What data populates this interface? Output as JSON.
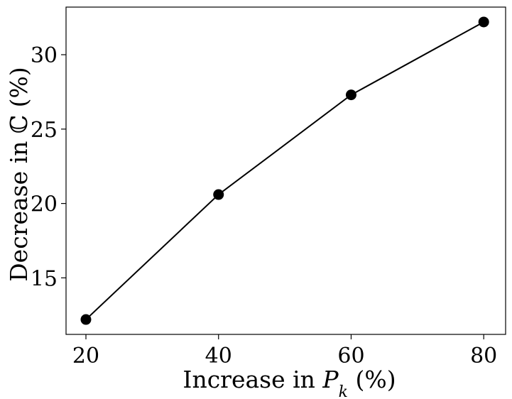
{
  "chart_data": {
    "type": "line",
    "title": "",
    "x": [
      20,
      40,
      60,
      80
    ],
    "series": [
      {
        "values": [
          12.2,
          20.6,
          27.3,
          32.2
        ]
      }
    ],
    "xlabel_prefix": "Increase in ",
    "xlabel_symbol": "P",
    "xlabel_subscript": "k",
    "xlabel_suffix": " (%)",
    "ylabel": "Decrease in ℂ (%)",
    "xlim": [
      17,
      83.3
    ],
    "ylim": [
      11.2,
      33.2
    ],
    "xticks": [
      20,
      40,
      60,
      80
    ],
    "yticks": [
      15,
      20,
      25,
      30
    ],
    "xtick_labels": [
      "20",
      "40",
      "60",
      "80"
    ],
    "ytick_labels": [
      "15",
      "20",
      "25",
      "30"
    ],
    "grid": false,
    "line_color": "#000000",
    "marker_color": "#000000",
    "marker": "circle"
  }
}
